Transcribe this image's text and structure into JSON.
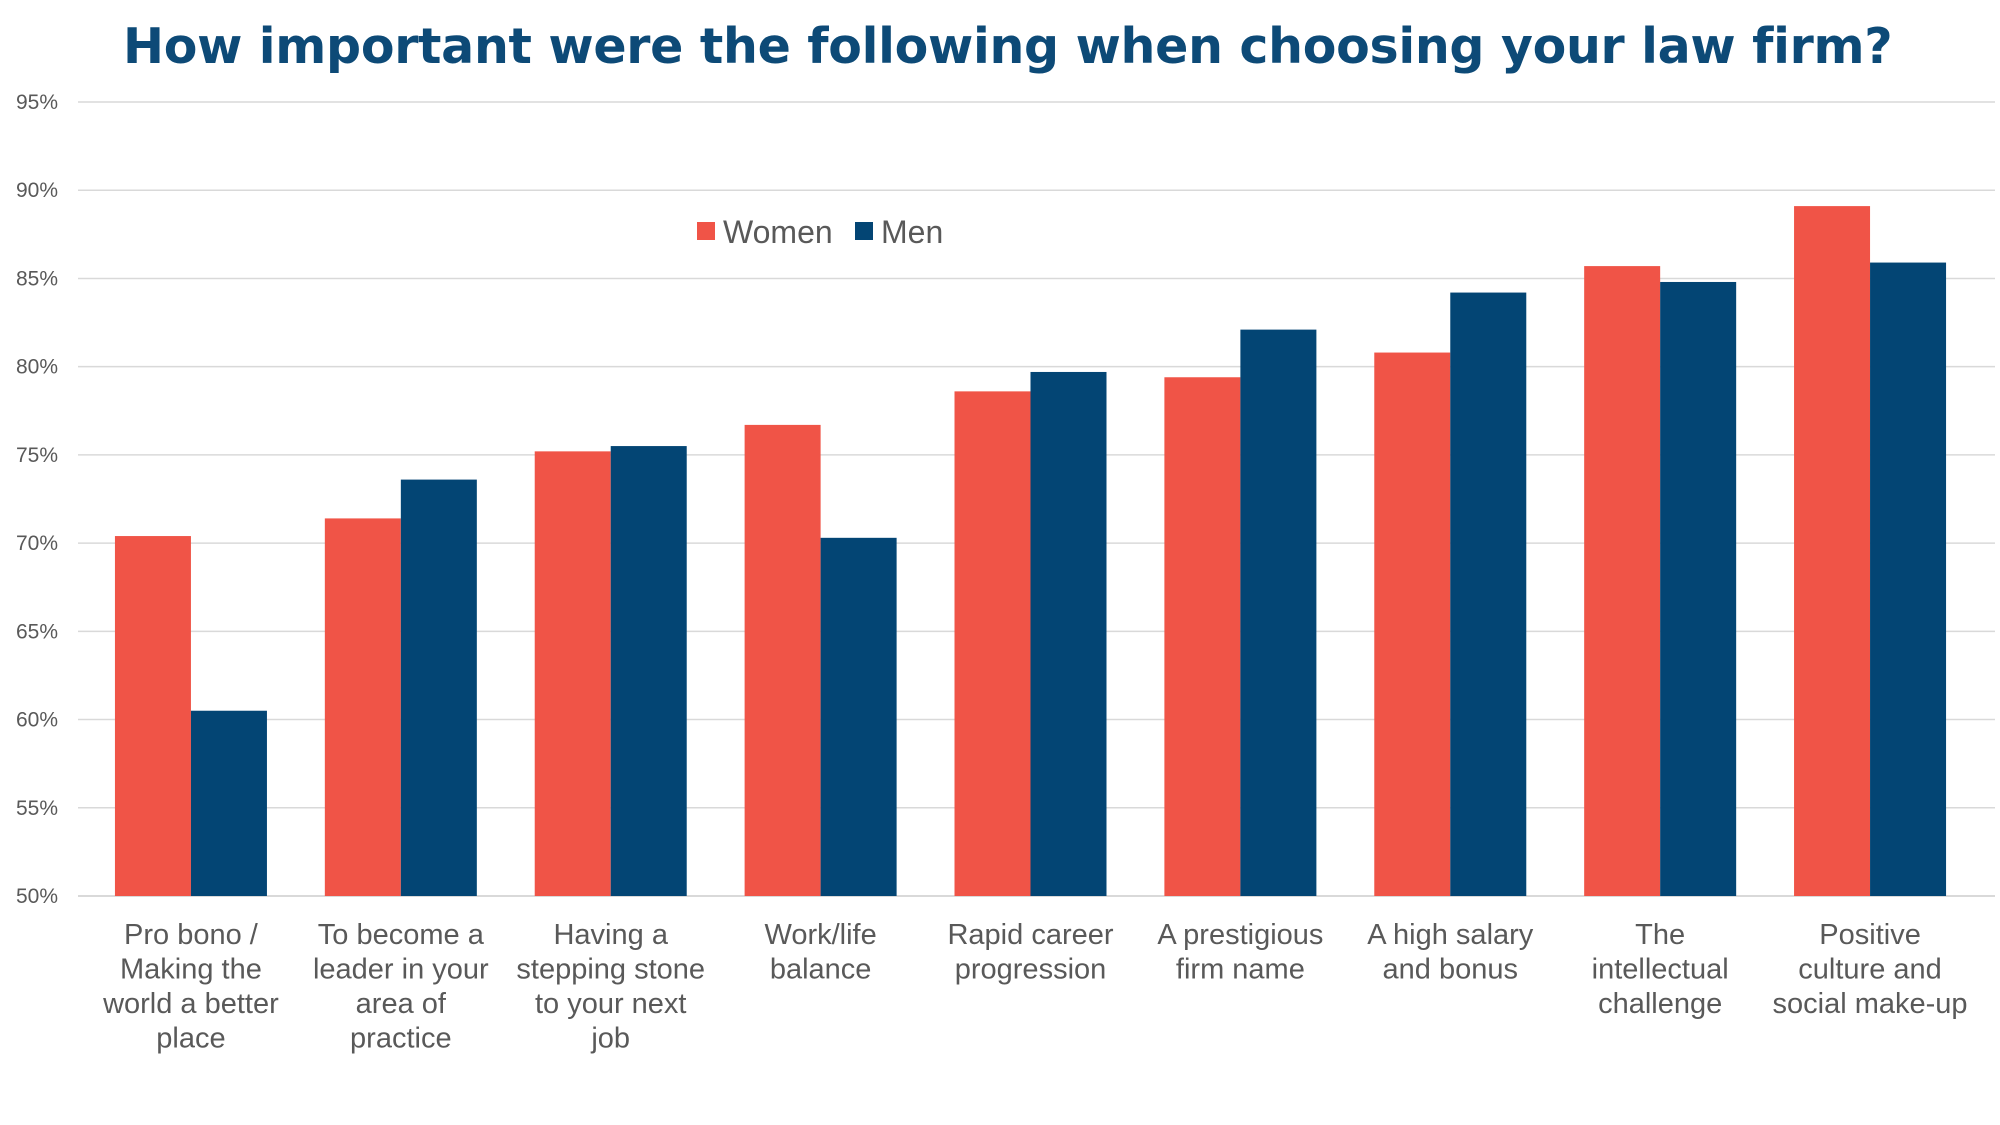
{
  "chart_data": {
    "type": "bar",
    "title": "How important were the following when choosing your law firm?",
    "xlabel": "",
    "ylabel": "",
    "ylim": [
      50,
      95
    ],
    "ytick_step": 5,
    "ytick_suffix": "%",
    "grid": true,
    "legend_position": "top-center",
    "categories": [
      [
        "Pro bono /",
        "Making the",
        "world a better",
        "place"
      ],
      [
        "To become a",
        "leader in your",
        "area of",
        "practice"
      ],
      [
        "Having a",
        "stepping stone",
        "to your next",
        "job"
      ],
      [
        "Work/life",
        "balance"
      ],
      [
        "Rapid career",
        "progression"
      ],
      [
        "A prestigious",
        "firm name"
      ],
      [
        "A high salary",
        "and bonus"
      ],
      [
        "The",
        "intellectual",
        "challenge"
      ],
      [
        "Positive",
        "culture and",
        "social make-up"
      ]
    ],
    "series": [
      {
        "name": "Women",
        "color": "#f05447",
        "values": [
          70.4,
          71.4,
          75.2,
          76.7,
          78.6,
          79.4,
          80.8,
          85.7,
          89.1
        ]
      },
      {
        "name": "Men",
        "color": "#034574",
        "values": [
          60.5,
          73.6,
          75.5,
          70.3,
          79.7,
          82.1,
          84.2,
          84.8,
          85.9
        ]
      }
    ]
  },
  "colors": {
    "title": "#0d4a77",
    "grid": "#d9d9d9",
    "axis_text": "#595959"
  }
}
